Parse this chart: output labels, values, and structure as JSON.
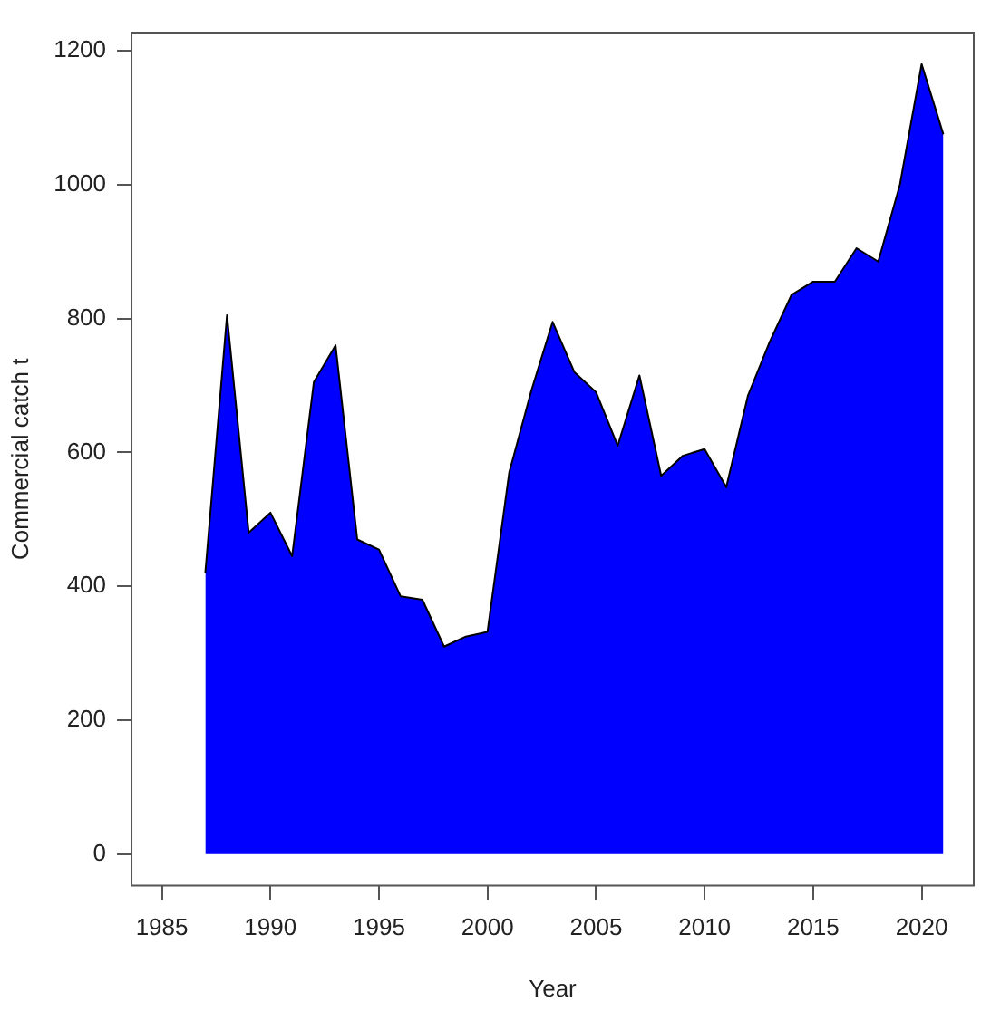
{
  "chart_data": {
    "type": "area",
    "xlabel": "Year",
    "ylabel": "Commercial catch t",
    "x": [
      1987,
      1988,
      1989,
      1990,
      1991,
      1992,
      1993,
      1994,
      1995,
      1996,
      1997,
      1998,
      1999,
      2000,
      2001,
      2002,
      2003,
      2004,
      2005,
      2006,
      2007,
      2008,
      2009,
      2010,
      2011,
      2012,
      2013,
      2014,
      2015,
      2016,
      2017,
      2018,
      2019,
      2020,
      2021
    ],
    "series": [
      {
        "color": "#0000ff",
        "values": [
          420,
          805,
          480,
          510,
          445,
          705,
          760,
          470,
          455,
          385,
          380,
          310,
          325,
          332,
          570,
          690,
          795,
          720,
          690,
          610,
          715,
          565,
          595,
          605,
          548,
          685,
          765,
          835,
          855,
          855,
          905,
          885,
          1000,
          1180,
          1075
        ]
      }
    ],
    "xlim": [
      1983.6,
      2022.4
    ],
    "xticks": [
      1985,
      1990,
      1995,
      2000,
      2005,
      2010,
      2015,
      2020
    ],
    "ylim": [
      -47,
      1227
    ],
    "yticks": [
      0,
      200,
      400,
      600,
      800,
      1000,
      1200
    ],
    "grid": false,
    "legend": false
  }
}
